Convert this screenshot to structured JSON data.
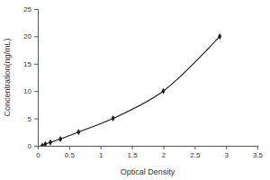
{
  "chart_data": {
    "type": "line",
    "x": [
      0.07,
      0.12,
      0.2,
      0.36,
      0.65,
      1.2,
      2.0,
      2.9
    ],
    "values": [
      0,
      0.31,
      0.63,
      1.25,
      2.5,
      5,
      10,
      20
    ],
    "x_label": "Optical Density",
    "y_label": "Concentration(ng/mL)",
    "color": "#1a1a1a",
    "marker": "diamond",
    "line_style": "solid",
    "grid": false,
    "xlim": [
      0,
      3.5
    ],
    "xticks": [
      0,
      0.5,
      1,
      1.5,
      2,
      2.5,
      3,
      3.5
    ],
    "ylim": [
      0,
      25
    ],
    "yticks": [
      0,
      5,
      10,
      15,
      20,
      25
    ]
  }
}
